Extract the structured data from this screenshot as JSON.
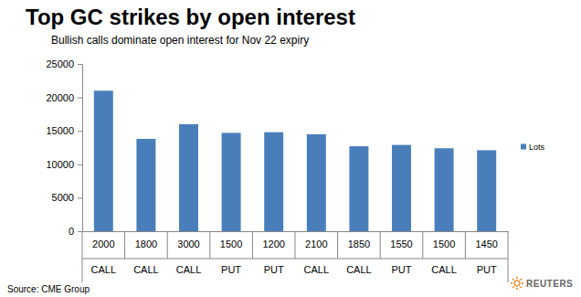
{
  "chart_data": {
    "type": "bar",
    "title": "Top GC strikes by open interest",
    "subtitle": "Bullish calls dominate open interest for Nov 22 expiry",
    "categories": [
      [
        "2000",
        "CALL"
      ],
      [
        "1800",
        "CALL"
      ],
      [
        "3000",
        "CALL"
      ],
      [
        "1500",
        "PUT"
      ],
      [
        "1200",
        "PUT"
      ],
      [
        "2100",
        "CALL"
      ],
      [
        "1850",
        "CALL"
      ],
      [
        "1550",
        "PUT"
      ],
      [
        "1500",
        "CALL"
      ],
      [
        "1450",
        "PUT"
      ]
    ],
    "series": [
      {
        "name": "Lots",
        "color": "#4a7ebb",
        "values": [
          21000,
          13800,
          16000,
          14700,
          14800,
          14500,
          12700,
          12900,
          12400,
          12100
        ]
      }
    ],
    "ylim": [
      0,
      25000
    ],
    "yticks": [
      0,
      5000,
      10000,
      15000,
      20000,
      25000
    ],
    "grid": false,
    "legend": "right",
    "source": "Source: CME Group",
    "logo": "REUTERS"
  }
}
